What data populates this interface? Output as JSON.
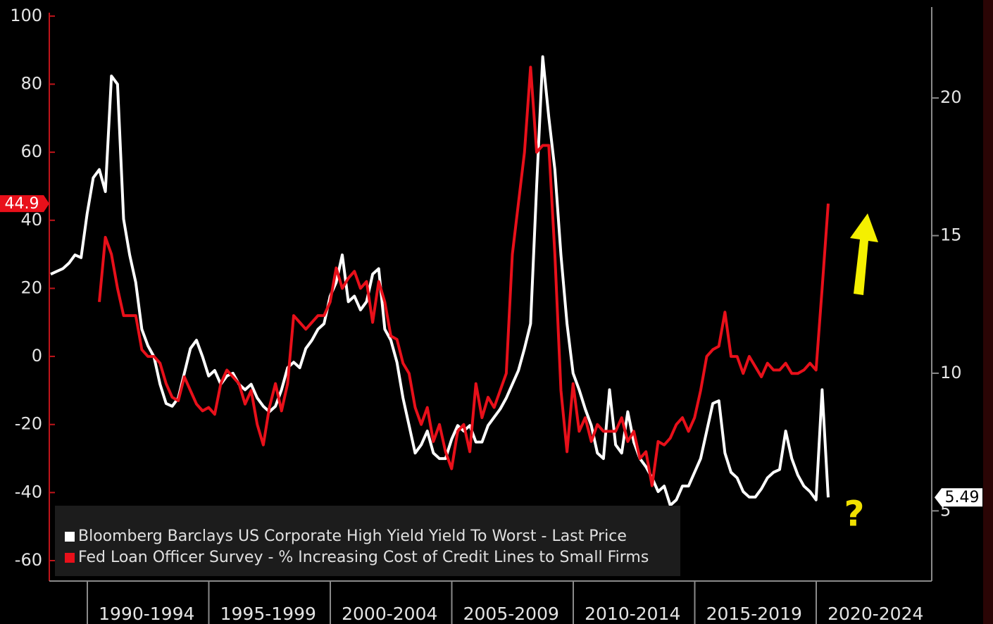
{
  "chart_data": {
    "type": "line",
    "periods": [
      "1990-1994",
      "1995-1999",
      "2000-2004",
      "2005-2009",
      "2010-2014",
      "2015-2019",
      "2020-2024"
    ],
    "ylim": [
      -66,
      101
    ],
    "yticks": [
      -60,
      -40,
      -20,
      0,
      20,
      40,
      60,
      80,
      100
    ],
    "y2lim": [
      2.45,
      23.1
    ],
    "y2ticks": [
      5,
      10,
      15,
      20
    ],
    "grid": false,
    "legend": "lower left",
    "annotations": [
      "?"
    ],
    "series": [
      {
        "name": "Bloomberg Barclays US Corporate High Yield Yield To Worst - Last Price",
        "color": "#ffffff",
        "axis": "y2",
        "values": [
          13.6,
          13.7,
          13.8,
          14.0,
          14.3,
          14.2,
          15.8,
          17.1,
          17.4,
          16.6,
          20.8,
          20.5,
          15.6,
          14.3,
          13.3,
          11.6,
          11.0,
          10.6,
          9.6,
          8.9,
          8.8,
          9.1,
          10.0,
          10.9,
          11.2,
          10.6,
          9.9,
          10.1,
          9.6,
          9.9,
          10.0,
          9.6,
          9.4,
          9.6,
          9.1,
          8.8,
          8.6,
          8.8,
          9.4,
          10.2,
          10.4,
          10.2,
          10.9,
          11.2,
          11.6,
          11.8,
          12.8,
          13.3,
          14.3,
          12.6,
          12.8,
          12.3,
          12.6,
          13.6,
          13.8,
          11.6,
          11.2,
          10.4,
          9.1,
          8.1,
          7.1,
          7.4,
          7.9,
          7.1,
          6.9,
          6.9,
          7.6,
          8.1,
          7.9,
          8.1,
          7.5,
          7.5,
          8.1,
          8.4,
          8.7,
          9.1,
          9.6,
          10.1,
          10.9,
          11.8,
          16.8,
          21.5,
          19.3,
          17.4,
          14.3,
          11.8,
          10.0,
          9.4,
          8.7,
          8.1,
          7.1,
          6.9,
          9.4,
          7.4,
          7.1,
          8.6,
          7.5,
          6.9,
          6.6,
          6.2,
          5.7,
          5.9,
          5.2,
          5.4,
          5.9,
          5.9,
          6.4,
          6.9,
          7.9,
          8.9,
          9.0,
          7.1,
          6.4,
          6.2,
          5.7,
          5.5,
          5.5,
          5.8,
          6.2,
          6.4,
          6.5,
          7.9,
          6.9,
          6.3,
          5.9,
          5.7,
          5.4,
          9.4,
          5.49
        ]
      },
      {
        "name": "Fed Loan Officer Survey - % Increasing Cost of Credit Lines to Small Firms",
        "color": "#e8101a",
        "values": [
          null,
          null,
          null,
          null,
          null,
          null,
          null,
          null,
          16,
          35,
          30,
          20,
          12,
          12,
          12,
          2,
          0,
          0,
          -2,
          -8,
          -12,
          -13,
          -6,
          -10,
          -14,
          -16,
          -15,
          -17,
          -8,
          -4,
          -6,
          -8,
          -14,
          -10,
          -20,
          -26,
          -15,
          -8,
          -16,
          -8,
          12,
          10,
          8,
          10,
          12,
          12,
          16,
          26,
          20,
          23,
          25,
          20,
          22,
          10,
          22,
          16,
          6,
          5,
          -2,
          -5,
          -15,
          -20,
          -15,
          -25,
          -20,
          -28,
          -33,
          -22,
          -20,
          -28,
          -8,
          -18,
          -12,
          -15,
          -10,
          -5,
          30,
          45,
          60,
          85,
          60,
          62,
          62,
          30,
          -10,
          -28,
          -8,
          -22,
          -18,
          -25,
          -20,
          -22,
          -22,
          -22,
          -18,
          -25,
          -22,
          -30,
          -28,
          -38,
          -25,
          -26,
          -24,
          -20,
          -18,
          -22,
          -18,
          -10,
          0,
          2,
          3,
          13,
          0,
          0,
          -5,
          0,
          -3,
          -6,
          -2,
          -4,
          -4,
          -2,
          -5,
          -5,
          -4,
          -2,
          -4,
          20,
          44.9
        ]
      }
    ]
  }
}
